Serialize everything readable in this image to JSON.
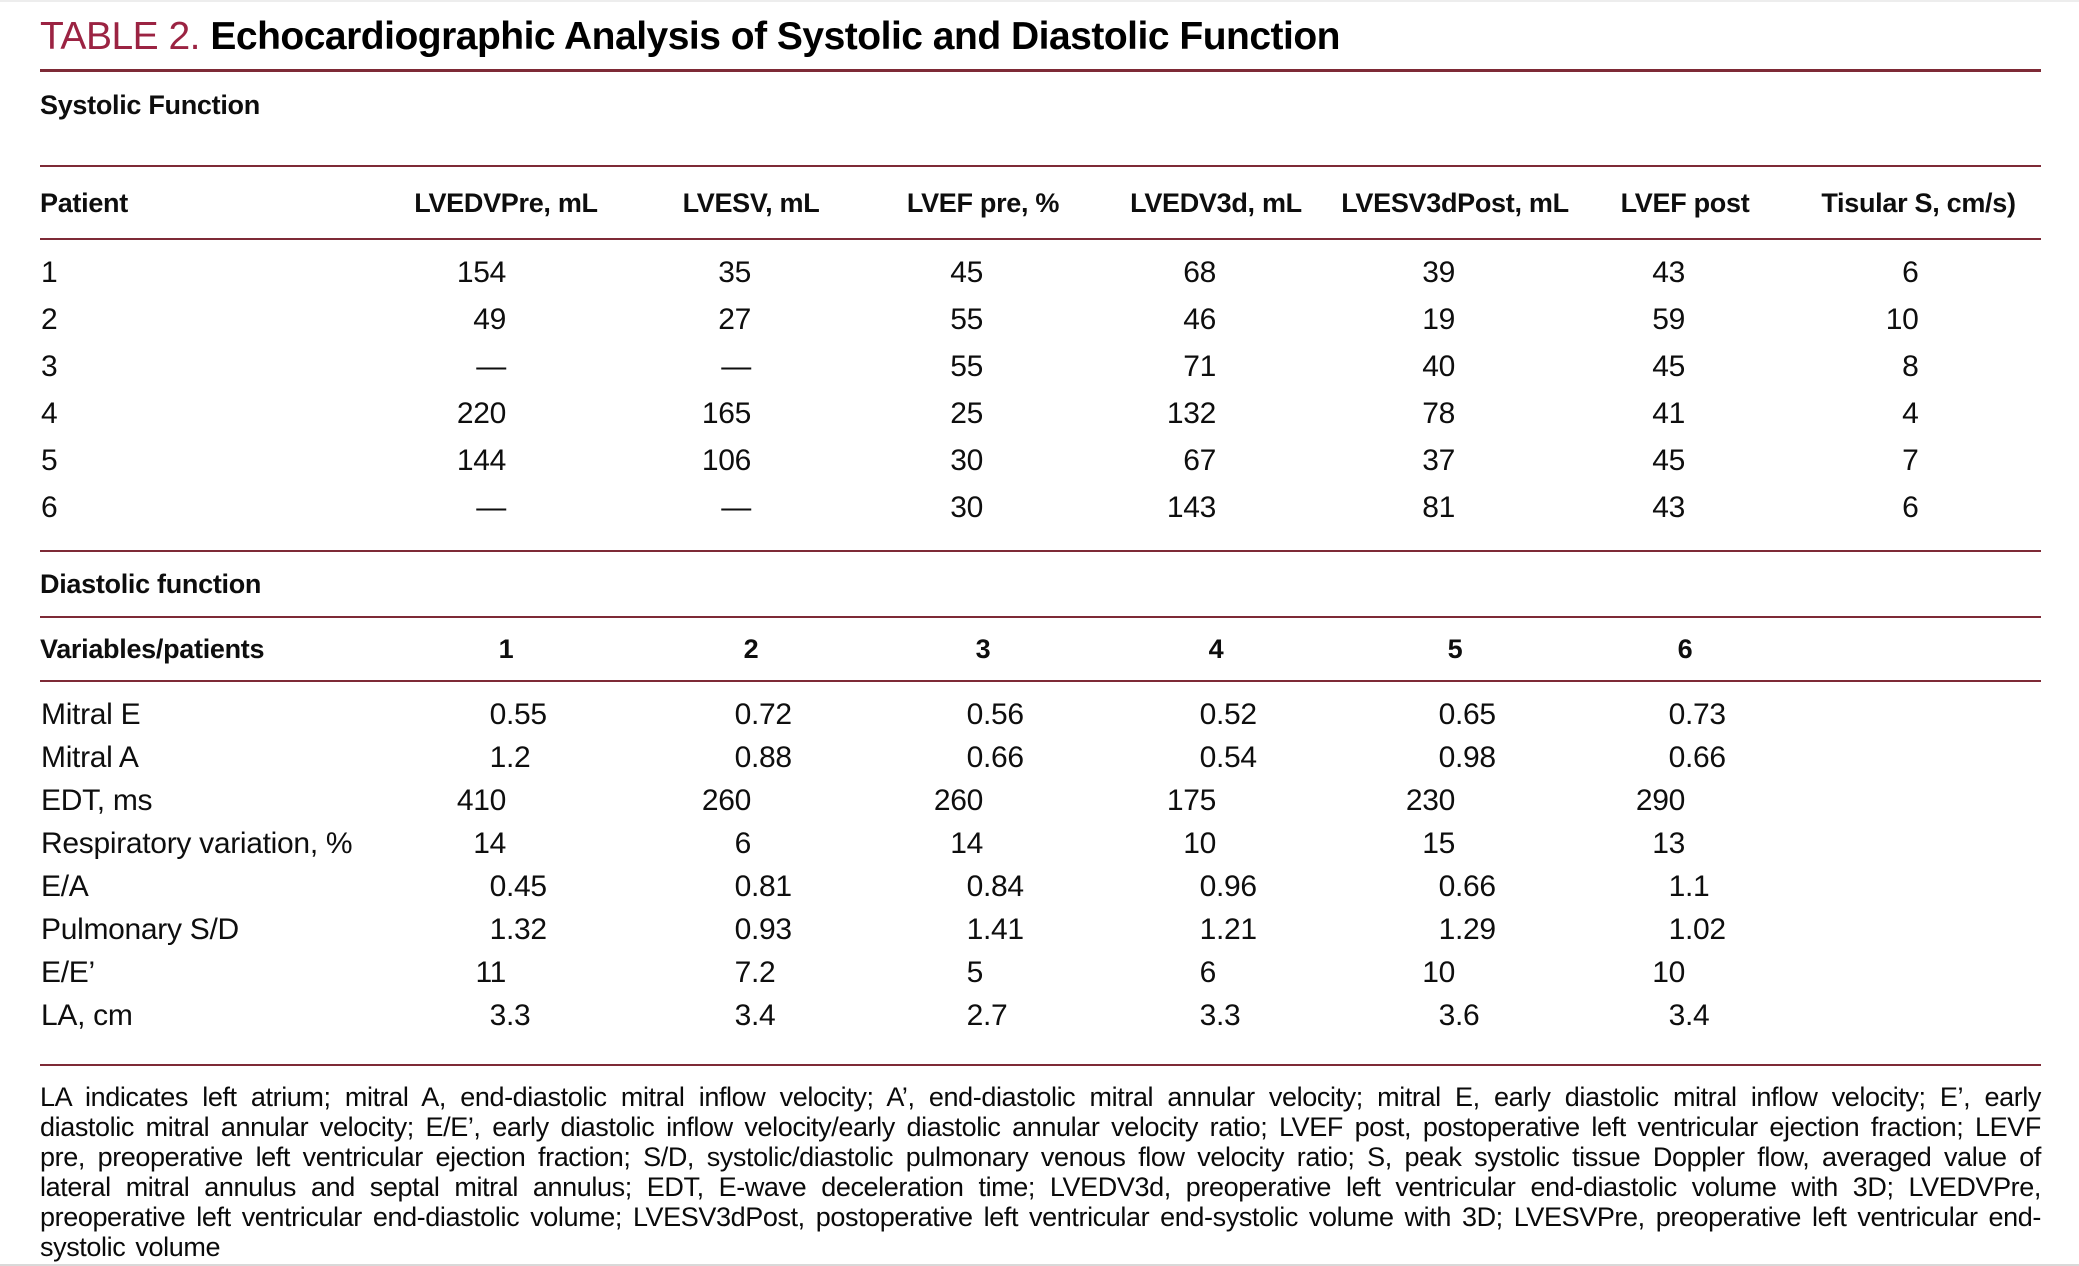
{
  "colors": {
    "rule": "#7e2a36",
    "title_red": "#9b2342"
  },
  "title": {
    "label": "TABLE 2.",
    "text": "Echocardiographic Analysis of Systolic and Diastolic Function"
  },
  "systolic": {
    "section": "Systolic Function",
    "headers": [
      "Patient",
      "LVEDVPre, mL",
      "LVESV, mL",
      "LVEF pre, %",
      "LVEDV3d, mL",
      "LVESV3dPost, mL",
      "LVEF post",
      "Tisular S, cm/s)"
    ],
    "rows": [
      [
        "1",
        "154",
        "35",
        "45",
        "68",
        "39",
        "43",
        "6"
      ],
      [
        "2",
        "49",
        "27",
        "55",
        "46",
        "19",
        "59",
        "10"
      ],
      [
        "3",
        "—",
        "—",
        "55",
        "71",
        "40",
        "45",
        "8"
      ],
      [
        "4",
        "220",
        "165",
        "25",
        "132",
        "78",
        "41",
        "4"
      ],
      [
        "5",
        "144",
        "106",
        "30",
        "67",
        "37",
        "45",
        "7"
      ],
      [
        "6",
        "—",
        "—",
        "30",
        "143",
        "81",
        "43",
        "6"
      ]
    ]
  },
  "diastolic": {
    "section": "Diastolic function",
    "headers": [
      "Variables/patients",
      "1",
      "2",
      "3",
      "4",
      "5",
      "6"
    ],
    "rows": [
      {
        "label": "Mitral E",
        "values": [
          "0.55",
          "0.72",
          "0.56",
          "0.52",
          "0.65",
          "0.73"
        ]
      },
      {
        "label": "Mitral A",
        "values": [
          "1.2",
          "0.88",
          "0.66",
          "0.54",
          "0.98",
          "0.66"
        ]
      },
      {
        "label": "EDT, ms",
        "values": [
          "410",
          "260",
          "260",
          "175",
          "230",
          "290"
        ]
      },
      {
        "label": "Respiratory variation, %",
        "values": [
          "14",
          "6",
          "14",
          "10",
          "15",
          "13"
        ]
      },
      {
        "label": "E/A",
        "values": [
          "0.45",
          "0.81",
          "0.84",
          "0.96",
          "0.66",
          "1.1"
        ]
      },
      {
        "label": "Pulmonary S/D",
        "values": [
          "1.32",
          "0.93",
          "1.41",
          "1.21",
          "1.29",
          "1.02"
        ]
      },
      {
        "label": "E/E’",
        "values": [
          "11",
          "7.2",
          "5",
          "6",
          "10",
          "10"
        ]
      },
      {
        "label": "LA, cm",
        "values": [
          "3.3",
          "3.4",
          "2.7",
          "3.3",
          "3.6",
          "3.4"
        ]
      }
    ]
  },
  "footnote": "LA indicates left atrium; mitral A, end-diastolic mitral inflow velocity; A’, end-diastolic mitral annular velocity; mitral E, early diastolic mitral inflow velocity; E’, early diastolic mitral annular velocity; E/E’, early diastolic inflow velocity/early diastolic annular velocity ratio; LVEF post, postoperative left ventricular ejection fraction; LEVF pre, preoperative left ventricular ejection fraction; S/D, systolic/diastolic pulmonary venous flow velocity ratio; S, peak systolic tissue Doppler flow, averaged value of lateral mitral annulus and septal mitral annulus; EDT, E-wave deceleration time; LVEDV3d, preoperative left ventricular end-diastolic volume with 3D; LVEDVPre, preoperative left ventricular end-diastolic volume; LVESV3dPost, postoperative left ventricular end-systolic volume with 3D; LVESVPre, preoperative left ventricular end-systolic volume"
}
